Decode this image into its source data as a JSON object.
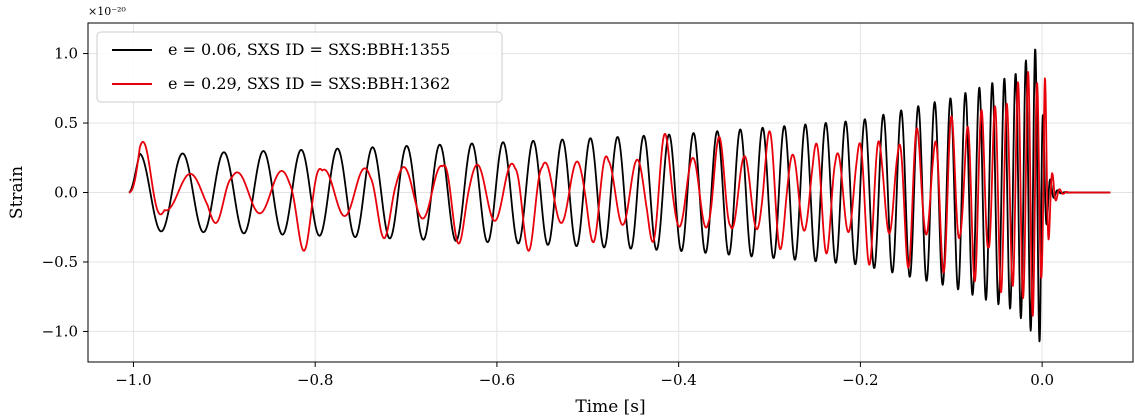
{
  "chart_data": {
    "type": "line",
    "title": "",
    "xlabel": "Time [s]",
    "ylabel": "Strain",
    "y_scale_factor": "×10⁻²⁰",
    "xlim": [
      -1.05,
      0.1
    ],
    "ylim": [
      -1.22,
      1.22
    ],
    "x_ticks": [
      -1.0,
      -0.8,
      -0.6,
      -0.4,
      -0.2,
      0.0
    ],
    "x_tick_labels": [
      "−1.0",
      "−0.8",
      "−0.6",
      "−0.4",
      "−0.2",
      "0.0"
    ],
    "y_ticks": [
      -1.0,
      -0.5,
      0.0,
      0.5,
      1.0
    ],
    "y_tick_labels": [
      "−1.0",
      "−0.5",
      "0.0",
      "0.5",
      "1.0"
    ],
    "grid": true,
    "legend_position": "top-left",
    "series": [
      {
        "name": "e = 0.06, SXS ID = SXS:BBH:1355",
        "color": "#000000",
        "t_start": -1.005,
        "t_end": 0.075,
        "peak_time": -0.002,
        "peak_amplitude": 1.1,
        "notes_values": {
          "amplitude_samples": [
            [
              -0.95,
              0.28
            ],
            [
              -0.8,
              0.31
            ],
            [
              -0.6,
              0.36
            ],
            [
              -0.4,
              0.42
            ],
            [
              -0.2,
              0.52
            ],
            [
              -0.1,
              0.68
            ],
            [
              -0.03,
              0.85
            ],
            [
              0.0,
              1.1
            ]
          ],
          "period_samples": [
            [
              -0.98,
              0.048
            ],
            [
              -0.8,
              0.04
            ],
            [
              -0.6,
              0.034
            ],
            [
              -0.4,
              0.027
            ],
            [
              -0.2,
              0.021
            ],
            [
              -0.1,
              0.017
            ],
            [
              -0.03,
              0.012
            ],
            [
              0.0,
              0.009
            ]
          ]
        }
      },
      {
        "name": "e = 0.29, SXS ID = SXS:BBH:1362",
        "color": "#e8000b",
        "t_start": -1.005,
        "t_end": 0.075,
        "peak_time": 0.002,
        "peak_amplitude": 1.1,
        "notes_values": {
          "burst_times": [
            -0.985,
            -0.905,
            -0.81,
            -0.725,
            -0.645,
            -0.565,
            -0.49,
            -0.42,
            -0.355,
            -0.295,
            -0.24,
            -0.19,
            -0.145,
            -0.105,
            -0.072,
            -0.045,
            -0.025,
            -0.012
          ],
          "burst_amplitudes": [
            0.4,
            0.24,
            0.43,
            0.33,
            0.38,
            0.42,
            0.38,
            0.46,
            0.4,
            0.48,
            0.45,
            0.52,
            0.55,
            0.6,
            0.65,
            0.72,
            0.8,
            0.9
          ],
          "period_samples": [
            [
              -0.98,
              0.055
            ],
            [
              -0.8,
              0.046
            ],
            [
              -0.6,
              0.038
            ],
            [
              -0.4,
              0.03
            ],
            [
              -0.2,
              0.023
            ],
            [
              -0.1,
              0.018
            ],
            [
              -0.03,
              0.012
            ],
            [
              0.0,
              0.009
            ]
          ]
        }
      }
    ]
  }
}
